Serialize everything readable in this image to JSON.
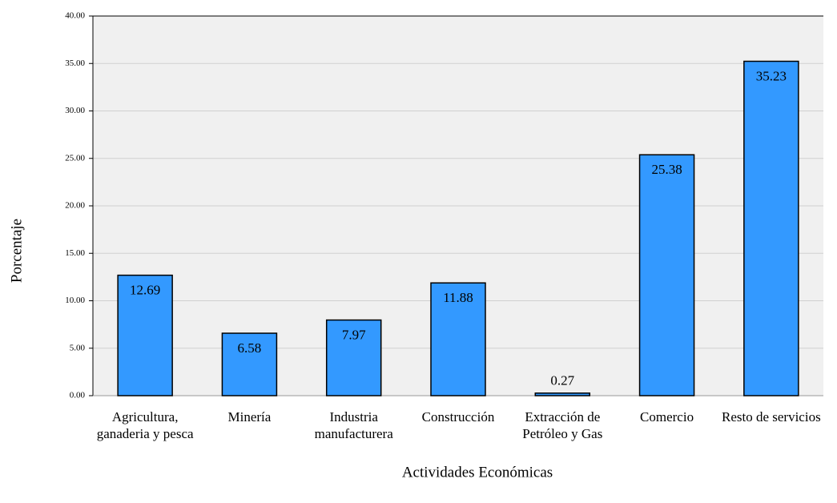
{
  "chart_data": {
    "type": "bar",
    "x_label": "Actividades Económicas",
    "y_label": "Porcentaje",
    "categories": [
      "Agricultura, ganaderia y pesca",
      "Minería",
      "Industria manufacturera",
      "Construcción",
      "Extracción de Petróleo y Gas",
      "Comercio",
      "Resto de servicios"
    ],
    "values": [
      12.69,
      6.58,
      7.97,
      11.88,
      0.27,
      25.38,
      35.23
    ],
    "color": "#3399ff",
    "ylim": [
      0,
      40
    ],
    "yticks": [
      {
        "value": 0,
        "label": "0.00"
      },
      {
        "value": 5,
        "label": "5.00"
      },
      {
        "value": 10,
        "label": "10.00"
      },
      {
        "value": 15,
        "label": "15.00"
      },
      {
        "value": 20,
        "label": "20.00"
      },
      {
        "value": 25,
        "label": "25.00"
      },
      {
        "value": 30,
        "label": "30.00"
      },
      {
        "value": 35,
        "label": "35.00"
      },
      {
        "value": 40,
        "label": "40.00"
      }
    ],
    "grid": true
  }
}
